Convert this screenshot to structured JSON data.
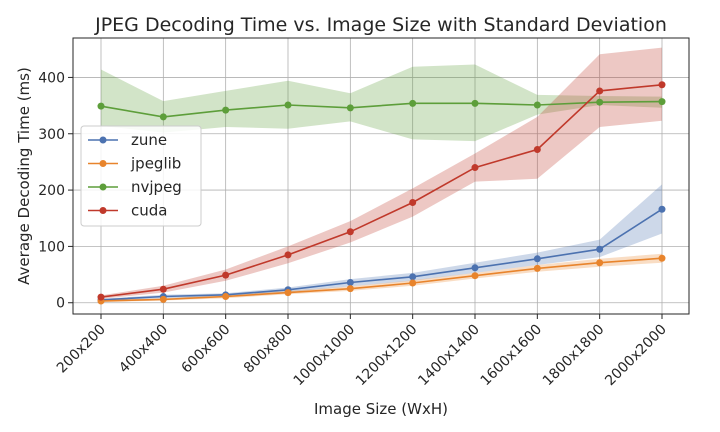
{
  "chart_data": {
    "type": "line",
    "title": "JPEG Decoding Time vs. Image Size with Standard Deviation",
    "xlabel": "Image Size (WxH)",
    "ylabel": "Average Decoding Time (ms)",
    "categories": [
      "200x200",
      "400x400",
      "600x600",
      "800x800",
      "1000x1000",
      "1200x1200",
      "1400x1400",
      "1600x1600",
      "1800x1800",
      "2000x2000"
    ],
    "ylim": [
      -20,
      470
    ],
    "yticks": [
      0,
      100,
      200,
      300,
      400
    ],
    "grid": true,
    "legend_position": "center-left",
    "series": [
      {
        "name": "zune",
        "color": "#4c72b0",
        "values": [
          5,
          11,
          14,
          23,
          36,
          46,
          62,
          78,
          95,
          166
        ],
        "lower": [
          3,
          8,
          11,
          19,
          29,
          39,
          53,
          67,
          81,
          123
        ],
        "upper": [
          7,
          14,
          17,
          27,
          42,
          53,
          71,
          89,
          112,
          210
        ]
      },
      {
        "name": "jpeglib",
        "color": "#e8842c",
        "values": [
          3,
          6,
          11,
          18,
          25,
          35,
          48,
          61,
          71,
          79
        ],
        "lower": [
          1,
          4,
          8,
          15,
          21,
          30,
          43,
          55,
          64,
          71
        ],
        "upper": [
          5,
          8,
          14,
          21,
          29,
          40,
          53,
          67,
          78,
          87
        ]
      },
      {
        "name": "nvjpeg",
        "color": "#5d9e3a",
        "values": [
          349,
          330,
          342,
          351,
          346,
          354,
          354,
          351,
          356,
          357
        ],
        "lower": [
          314,
          302,
          312,
          309,
          322,
          290,
          287,
          334,
          351,
          346
        ],
        "upper": [
          414,
          358,
          376,
          394,
          372,
          419,
          423,
          369,
          367,
          366
        ]
      },
      {
        "name": "cuda",
        "color": "#c0392b",
        "values": [
          10,
          24,
          49,
          85,
          126,
          178,
          240,
          272,
          376,
          387
        ],
        "lower": [
          7,
          18,
          39,
          70,
          107,
          153,
          215,
          220,
          312,
          323
        ],
        "upper": [
          13,
          30,
          59,
          100,
          145,
          203,
          265,
          330,
          441,
          453
        ]
      }
    ]
  }
}
